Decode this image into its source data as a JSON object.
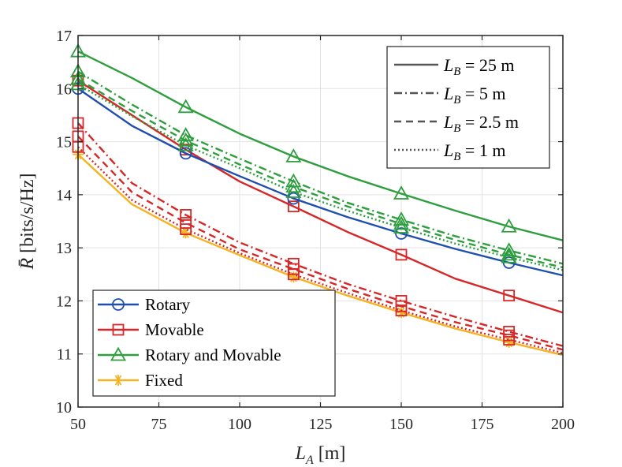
{
  "chart_data": {
    "type": "line",
    "title": "",
    "xlabel": {
      "var": "L",
      "sub": "A",
      "unit": " [m]"
    },
    "ylabel": {
      "var": "R̄",
      "unit": " [bits/s/Hz]"
    },
    "xlim": [
      50,
      200
    ],
    "ylim": [
      10,
      17
    ],
    "xticks": [
      50,
      75,
      100,
      125,
      150,
      175,
      200
    ],
    "yticks": [
      10,
      11,
      12,
      13,
      14,
      15,
      16,
      17
    ],
    "grid": true,
    "x": [
      50,
      66.67,
      83.33,
      100,
      116.67,
      133.33,
      150,
      166.67,
      183.33,
      200
    ],
    "marker_x": [
      50,
      83.33,
      116.67,
      150,
      183.33
    ],
    "methods": [
      {
        "key": "rotary",
        "label": "Rotary",
        "color": "#1f4fae",
        "marker": "circle"
      },
      {
        "key": "movable",
        "label": "Movable",
        "color": "#d62728",
        "marker": "square"
      },
      {
        "key": "rotary_movable",
        "label": "Rotary and Movable",
        "color": "#2e9e3e",
        "marker": "triangle"
      },
      {
        "key": "fixed",
        "label": "Fixed",
        "color": "#f5b324",
        "marker": "asterisk"
      }
    ],
    "line_styles": [
      {
        "key": "25",
        "label": "L_B = 25 m",
        "math": {
          "var": "L",
          "sub": "B",
          "rest": " = 25 m"
        },
        "dash": "solid"
      },
      {
        "key": "5",
        "label": "L_B = 5 m",
        "math": {
          "var": "L",
          "sub": "B",
          "rest": " = 5 m"
        },
        "dash": "dashdot"
      },
      {
        "key": "2.5",
        "label": "L_B = 2.5 m",
        "math": {
          "var": "L",
          "sub": "B",
          "rest": " = 2.5 m"
        },
        "dash": "dashed"
      },
      {
        "key": "1",
        "label": "L_B = 1 m",
        "math": {
          "var": "L",
          "sub": "B",
          "rest": " = 1 m"
        },
        "dash": "dotted"
      }
    ],
    "series": [
      {
        "name": "Rotary, L_B = 25 m",
        "method": "rotary",
        "style": "25",
        "values": [
          16.0,
          15.3,
          14.78,
          14.35,
          13.93,
          13.58,
          13.27,
          12.98,
          12.72,
          12.48
        ]
      },
      {
        "name": "Movable, L_B = 25 m",
        "method": "movable",
        "style": "25",
        "values": [
          16.15,
          15.5,
          14.85,
          14.25,
          13.78,
          13.3,
          12.87,
          12.42,
          12.1,
          11.78
        ]
      },
      {
        "name": "Movable, L_B = 5 m",
        "method": "movable",
        "style": "5",
        "values": [
          15.35,
          14.22,
          13.62,
          13.1,
          12.7,
          12.32,
          12.0,
          11.7,
          11.42,
          11.15
        ]
      },
      {
        "name": "Movable, L_B = 2.5 m",
        "method": "movable",
        "style": "2.5",
        "values": [
          15.1,
          14.05,
          13.47,
          12.97,
          12.6,
          12.23,
          11.9,
          11.6,
          11.35,
          11.08
        ]
      },
      {
        "name": "Movable, L_B = 1 m",
        "method": "movable",
        "style": "1",
        "values": [
          14.9,
          13.9,
          13.35,
          12.9,
          12.5,
          12.15,
          11.82,
          11.52,
          11.27,
          11.02
        ]
      },
      {
        "name": "Rotary and Movable, L_B = 25 m",
        "method": "rotary_movable",
        "style": "25",
        "values": [
          16.7,
          16.2,
          15.65,
          15.15,
          14.72,
          14.35,
          14.02,
          13.7,
          13.4,
          13.14
        ]
      },
      {
        "name": "Rotary and Movable, L_B = 5 m",
        "method": "rotary_movable",
        "style": "5",
        "values": [
          16.32,
          15.7,
          15.12,
          14.68,
          14.25,
          13.85,
          13.53,
          13.22,
          12.95,
          12.7
        ]
      },
      {
        "name": "Rotary and Movable, L_B = 2.5 m",
        "method": "rotary_movable",
        "style": "2.5",
        "values": [
          16.18,
          15.58,
          15.02,
          14.57,
          14.15,
          13.78,
          13.45,
          13.15,
          12.87,
          12.63
        ]
      },
      {
        "name": "Rotary and Movable, L_B = 1 m",
        "method": "rotary_movable",
        "style": "1",
        "values": [
          16.08,
          15.48,
          14.93,
          14.5,
          14.05,
          13.7,
          13.38,
          13.08,
          12.82,
          12.58
        ]
      },
      {
        "name": "Fixed, L_B = 25 m",
        "method": "fixed",
        "style": "25",
        "values": [
          14.76,
          13.82,
          13.28,
          12.86,
          12.45,
          12.1,
          11.78,
          11.48,
          11.22,
          10.98
        ]
      }
    ],
    "legend_methods_position": "bottom-left",
    "legend_styles_position": "top-right"
  }
}
